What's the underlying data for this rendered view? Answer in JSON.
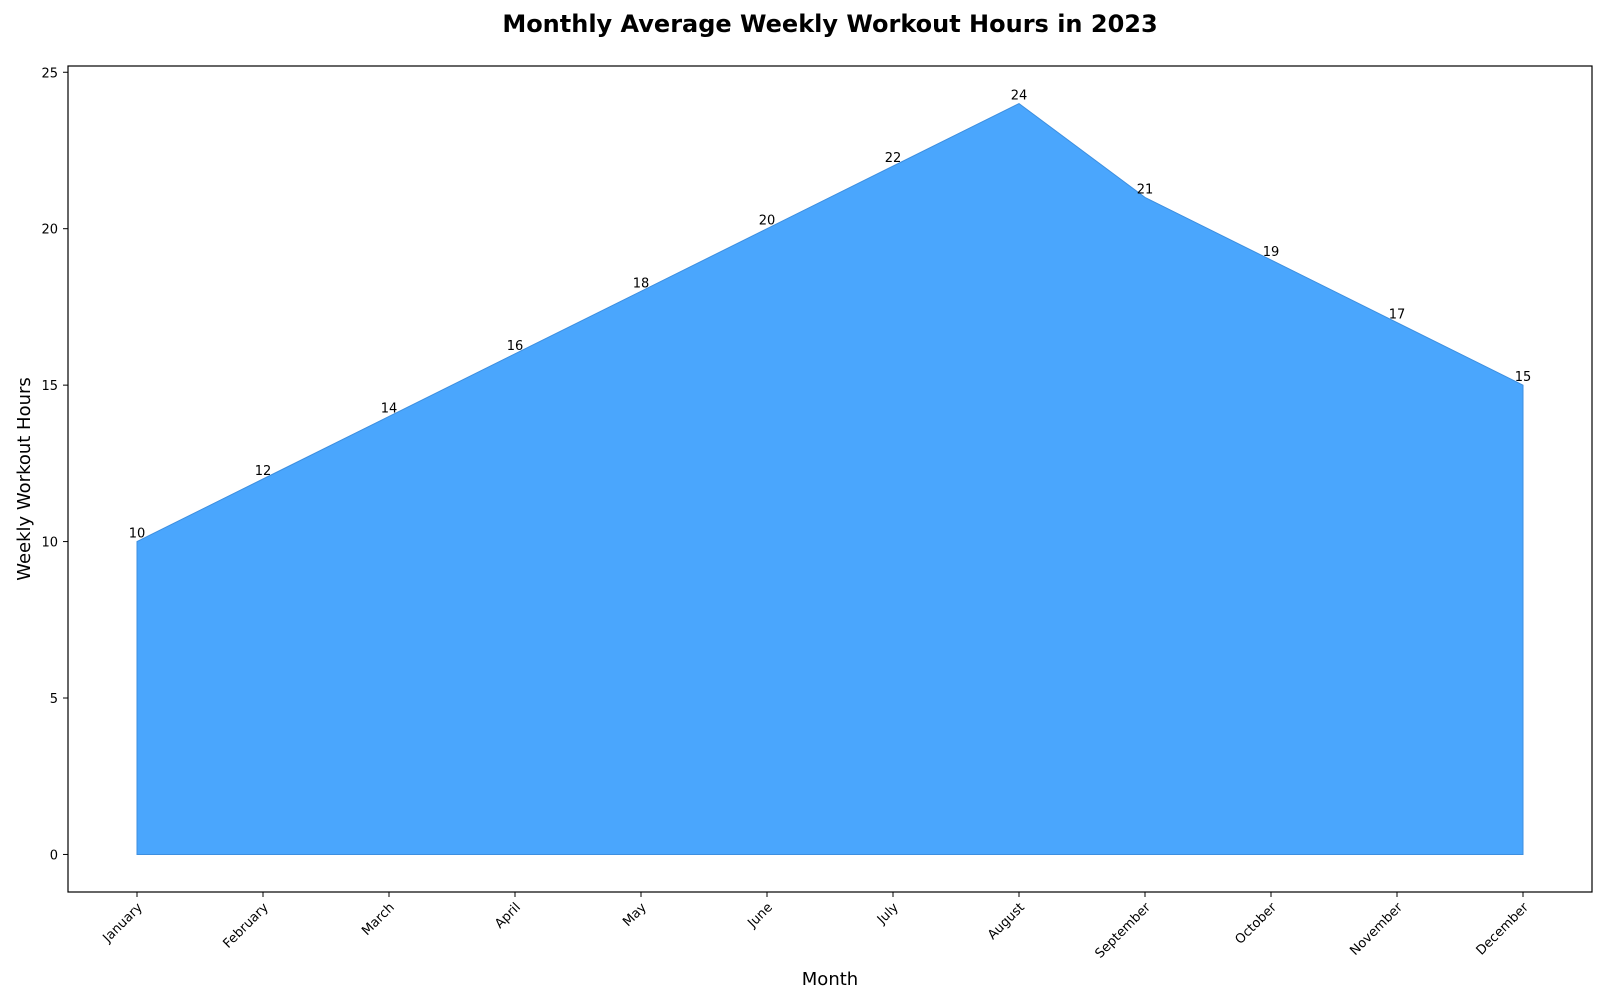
{
  "chart_data": {
    "type": "area",
    "title": "Monthly Average Weekly Workout Hours in 2023",
    "xlabel": "Month",
    "ylabel": "Weekly Workout Hours",
    "categories": [
      "January",
      "February",
      "March",
      "April",
      "May",
      "June",
      "July",
      "August",
      "September",
      "October",
      "November",
      "December"
    ],
    "values": [
      10,
      12,
      14,
      16,
      18,
      20,
      22,
      24,
      21,
      19,
      17,
      15
    ],
    "yticks": [
      0,
      5,
      10,
      15,
      20,
      25
    ],
    "ylim": [
      -1.2,
      25.2
    ],
    "grid": false,
    "legend": "none",
    "fill_color": "#4aa6fd",
    "line_color": "#3d8fe0"
  }
}
